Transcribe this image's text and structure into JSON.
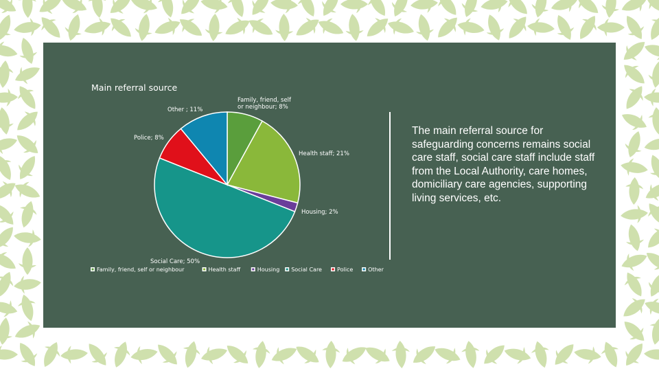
{
  "description_text": "The main referral source for safeguarding concerns remains social care staff, social care staff include staff from the Local Authority, care homes, domiciliary care agencies, supporting living services, etc.",
  "colors": {
    "background": "#ffffff",
    "pattern": "#cfe0ad",
    "panel": "#476152",
    "text": "#ffffff"
  },
  "chart_data": {
    "type": "pie",
    "title": "Main referral source",
    "legend_position": "bottom",
    "slices": [
      {
        "name": "Family, friend, self or neighbour",
        "value": 8,
        "label": "Family, friend, self or neighbour; 8%",
        "color": "#5a9e3c"
      },
      {
        "name": "Health staff",
        "value": 21,
        "label": "Health staff; 21%",
        "color": "#8ab83a"
      },
      {
        "name": "Housing",
        "value": 2,
        "label": "Housing; 2%",
        "color": "#6a3d9a"
      },
      {
        "name": "Social Care",
        "value": 50,
        "label": "Social Care; 50%",
        "color": "#16958a"
      },
      {
        "name": "Police",
        "value": 8,
        "label": "Police; 8%",
        "color": "#e0101a"
      },
      {
        "name": "Other",
        "value": 11,
        "label": "Other ; 11%",
        "color": "#0f86b0"
      }
    ]
  }
}
